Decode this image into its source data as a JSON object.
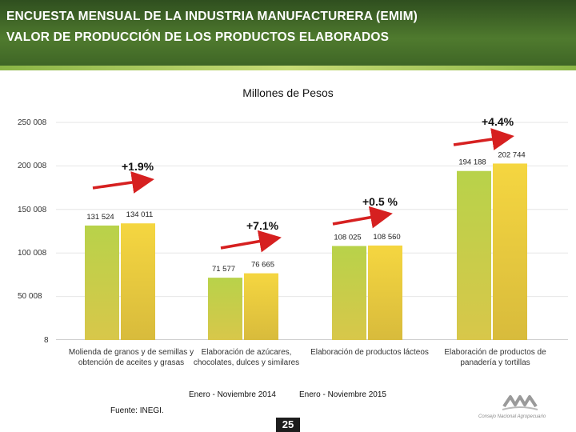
{
  "header": {
    "title_line1": "ENCUESTA MENSUAL DE LA INDUSTRIA MANUFACTURERA (EMIM)",
    "title_line2": "VALOR DE PRODUCCIÓN DE LOS PRODUCTOS ELABORADOS"
  },
  "chart_data": {
    "type": "bar",
    "title": "Millones de Pesos",
    "xlabel": "",
    "ylabel": "",
    "ylim": [
      8,
      250008
    ],
    "yticks": [
      "250 008",
      "200 008",
      "150 008",
      "100 008",
      "50 008",
      "8"
    ],
    "categories": [
      "Molienda de granos y de semillas y obtención de aceites y grasas",
      "Elaboración de azúcares, chocolates, dulces y similares",
      "Elaboración de productos lácteos",
      "Elaboración de productos de panadería y tortillas"
    ],
    "series": [
      {
        "name": "Enero - Noviembre 2014",
        "values": [
          131524,
          71577,
          108025,
          194188
        ],
        "labels": [
          "131 524",
          "71 577",
          "108 025",
          "194 188"
        ],
        "color": "#b8d24a"
      },
      {
        "name": "Enero - Noviembre 2015",
        "values": [
          134011,
          76665,
          108560,
          202744
        ],
        "labels": [
          "134 011",
          "76 665",
          "108 560",
          "202 744"
        ],
        "color": "#f5d640"
      }
    ],
    "annotations": [
      "+1.9%",
      "+7.1%",
      "+0.5 %",
      "+4.4%"
    ],
    "grid": true,
    "legend": "bottom"
  },
  "footer": {
    "source": "Fuente: INEGI.",
    "page": "25",
    "logo_text": "Consejo Nacional Agropecuario"
  },
  "colors": {
    "header": "#3c6224",
    "arrow": "#d62020"
  }
}
